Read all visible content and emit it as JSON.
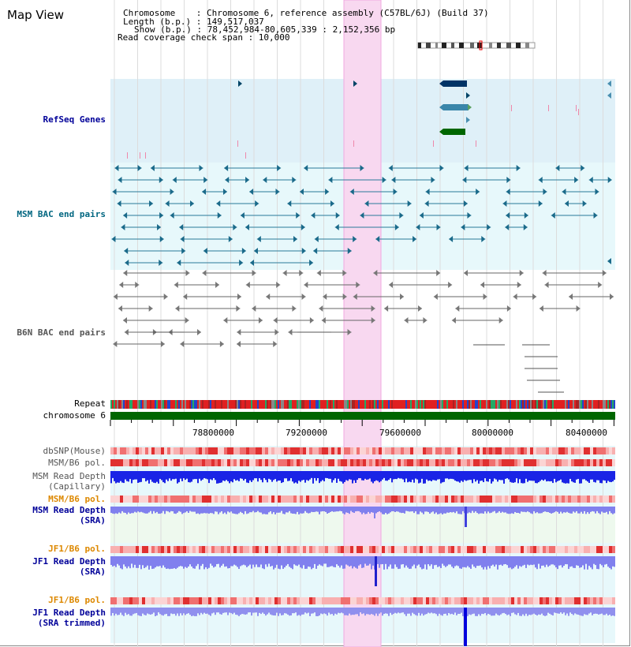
{
  "title": "Map View",
  "info": {
    "chromosome": "Chromosome    : Chromosome 6, reference assembly (C57BL/6J) (Build 37)",
    "length": "Length (b.p.) : 149,517,037",
    "show": "Show (b.p.) : 78,452,984-80,605,339 : 2,152,356 bp",
    "coverage": "Read coverage check span : 10,000"
  },
  "tracks": {
    "refseq": "RefSeq Genes",
    "msm_bac": "MSM BAC end pairs",
    "b6n_bac": "B6N BAC end pairs",
    "repeat": "Repeat",
    "chromosome": "chromosome 6",
    "dbsnp": "dbSNP(Mouse)",
    "msm_b6_pol": "MSM/B6 pol.",
    "msm_read_depth": "MSM Read Depth",
    "capillary": "(Capillary)",
    "msm_b6_pol2": "MSM/B6 pol.",
    "msm_read_depth_sra": "MSM Read Depth",
    "sra": "(SRA)",
    "jf1_b6_pol": "JF1/B6 pol.",
    "jf1_read_depth": "JF1 Read Depth",
    "sra2": "(SRA)",
    "jf1_b6_pol2": "JF1/B6 pol.",
    "jf1_read_depth2": "JF1 Read Depth",
    "sra_trimmed": "(SRA trimmed)"
  },
  "ruler": {
    "ticks": [
      "78800000",
      "79200000",
      "79600000",
      "80000000",
      "80400000"
    ]
  },
  "colors": {
    "refseq_bg": "#dff0f8",
    "msm_bg": "#e7f8fb",
    "highlight": "#f8d8f0",
    "chromosome": "#006600",
    "label_blue": "#000099",
    "label_teal": "#006680",
    "label_gray": "#555555",
    "label_orange": "#dd8800",
    "msm_capillary": "#1a24e6",
    "sra_bar": "#8080ee"
  },
  "icons": [
    "arrow-right-icon",
    "arrow-left-icon",
    "chromosome-ideogram-icon"
  ]
}
